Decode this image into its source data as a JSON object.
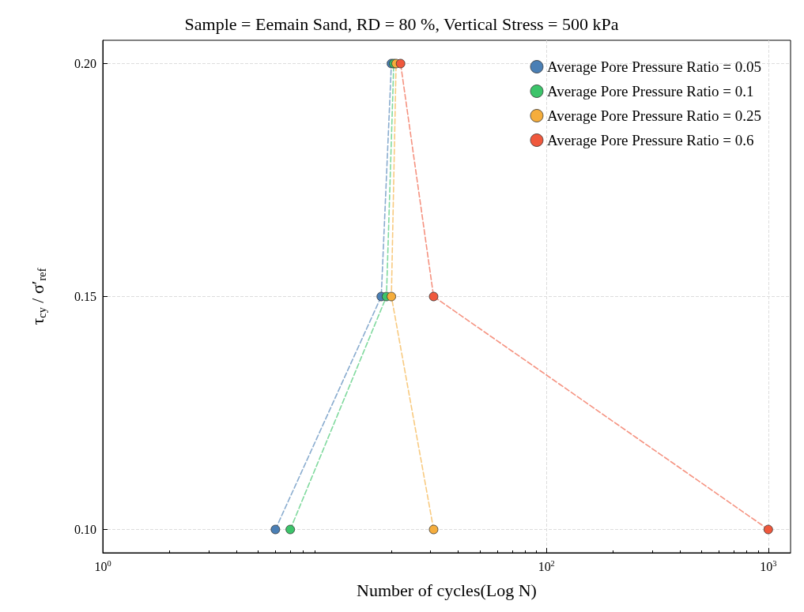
{
  "chart_data": {
    "type": "line",
    "title": "Sample = Eemain Sand, RD = 80 %, Vertical Stress = 500 kPa",
    "xlabel": "Number of cycles(Log N)",
    "ylabel": "τ$_{cy}$ / σ′$_{ref}$",
    "log": "x",
    "xlim": [
      1,
      1260
    ],
    "xticks": [
      {
        "value": 1,
        "label": "10$^{0}$"
      },
      {
        "value": 100,
        "label": "10$^{2}$"
      },
      {
        "value": 1000,
        "label": "10$^{3}$"
      }
    ],
    "ylim": [
      0.095,
      0.205
    ],
    "yticks": [
      {
        "value": 0.1,
        "label": "0.10"
      },
      {
        "value": 0.15,
        "label": "0.15"
      },
      {
        "value": 0.2,
        "label": "0.20"
      }
    ],
    "grid": true,
    "legend": "top right",
    "marker": "circle",
    "line_style": "dashed",
    "series": [
      {
        "name": "Average Pore Pressure Ratio = 0.05",
        "color": "#4a7fb5",
        "x": [
          6,
          18,
          20
        ],
        "values": [
          0.1,
          0.15,
          0.2
        ]
      },
      {
        "name": "Average Pore Pressure Ratio = 0.1",
        "color": "#3cc46a",
        "x": [
          7,
          19,
          20.5
        ],
        "values": [
          0.1,
          0.15,
          0.2
        ]
      },
      {
        "name": "Average Pore Pressure Ratio = 0.25",
        "color": "#f5ad3c",
        "x": [
          31,
          20,
          21
        ],
        "values": [
          0.1,
          0.15,
          0.2
        ]
      },
      {
        "name": "Average Pore Pressure Ratio = 0.6",
        "color": "#f0583c",
        "x": [
          1000,
          31,
          22
        ],
        "values": [
          0.1,
          0.15,
          0.2
        ]
      }
    ]
  }
}
